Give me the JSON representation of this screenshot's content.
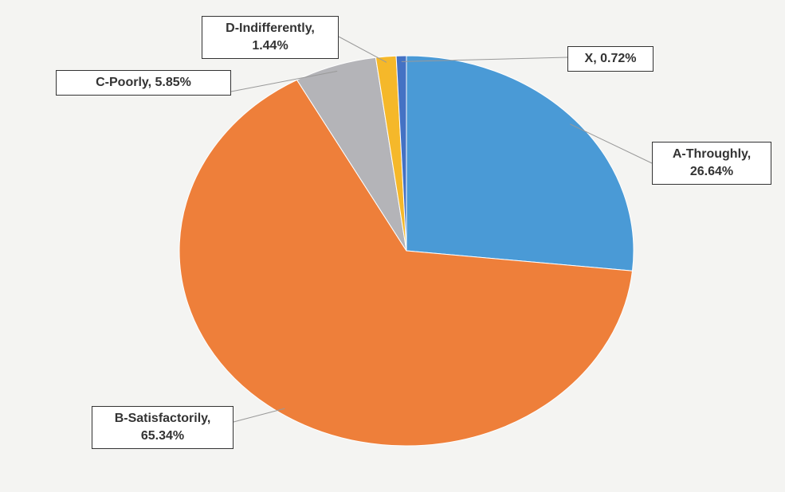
{
  "chart_data": {
    "type": "pie",
    "values": [
      26.64,
      65.34,
      5.85,
      1.44,
      0.72
    ],
    "value_labels": [
      "A-Throughly, 26.64%",
      "B-Satisfactorily, 65.34%",
      "C-Poorly, 5.85%",
      "D-Indifferently, 1.44%",
      "X, 0.72%"
    ],
    "colors": [
      "#4a9ad6",
      "#ee7f3a",
      "#b4b4b8",
      "#f5b82a",
      "#4472c4"
    ]
  }
}
